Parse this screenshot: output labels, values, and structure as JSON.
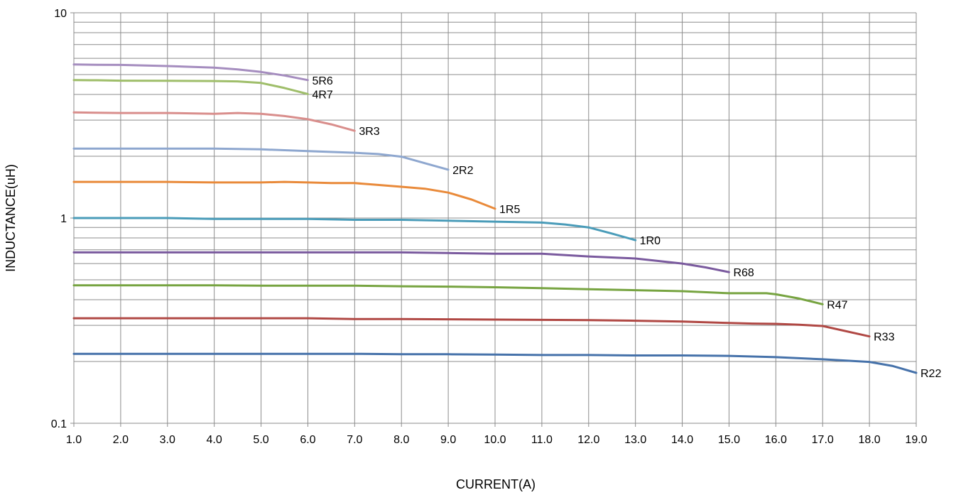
{
  "chart_data": {
    "type": "line",
    "title": "",
    "xlabel": "CURRENT(A)",
    "ylabel": "INDUCTANCE(uH)",
    "xlim": [
      1.0,
      19.0
    ],
    "ylim": [
      0.1,
      10
    ],
    "y_scale": "log",
    "grid": true,
    "legend": "none",
    "x_ticks": [
      "1.0",
      "2.0",
      "3.0",
      "4.0",
      "5.0",
      "6.0",
      "7.0",
      "8.0",
      "9.0",
      "10.0",
      "11.0",
      "12.0",
      "13.0",
      "14.0",
      "15.0",
      "16.0",
      "17.0",
      "18.0",
      "19.0"
    ],
    "x_tick_values": [
      1,
      2,
      3,
      4,
      5,
      6,
      7,
      8,
      9,
      10,
      11,
      12,
      13,
      14,
      15,
      16,
      17,
      18,
      19
    ],
    "y_ticks": [
      "0.1",
      "1",
      "10"
    ],
    "y_tick_values": [
      0.1,
      1,
      10
    ],
    "series": [
      {
        "name": "5R6",
        "color": "#A58DBF",
        "x": [
          1,
          1.5,
          2,
          3,
          4,
          4.5,
          5,
          5.5,
          6
        ],
        "y": [
          5.6,
          5.58,
          5.57,
          5.5,
          5.4,
          5.3,
          5.15,
          4.95,
          4.7
        ]
      },
      {
        "name": "4R7",
        "color": "#9FBE6A",
        "x": [
          1,
          1.5,
          2,
          3,
          4,
          4.5,
          5,
          5.5,
          6
        ],
        "y": [
          4.7,
          4.69,
          4.67,
          4.66,
          4.65,
          4.63,
          4.55,
          4.3,
          4.02
        ]
      },
      {
        "name": "3R3",
        "color": "#D98E8C",
        "x": [
          1,
          2,
          3,
          4,
          4.5,
          5,
          5.5,
          6,
          6.5,
          7
        ],
        "y": [
          3.27,
          3.25,
          3.25,
          3.22,
          3.25,
          3.22,
          3.14,
          3.03,
          2.86,
          2.66
        ]
      },
      {
        "name": "2R2",
        "color": "#8EA7CF",
        "x": [
          1,
          2,
          3,
          4,
          5,
          6,
          7,
          7.5,
          8,
          8.5,
          9
        ],
        "y": [
          2.18,
          2.18,
          2.18,
          2.18,
          2.16,
          2.12,
          2.08,
          2.05,
          1.99,
          1.85,
          1.72
        ]
      },
      {
        "name": "1R5",
        "color": "#E98A3A",
        "x": [
          1,
          2,
          3,
          4,
          5,
          5.5,
          6,
          6.5,
          7,
          7.5,
          8,
          8.5,
          9,
          9.5,
          10
        ],
        "y": [
          1.5,
          1.5,
          1.5,
          1.49,
          1.49,
          1.5,
          1.49,
          1.48,
          1.48,
          1.45,
          1.42,
          1.39,
          1.33,
          1.23,
          1.11
        ]
      },
      {
        "name": "1R0",
        "color": "#4A9CB9",
        "x": [
          1,
          2,
          3,
          4,
          5,
          6,
          7,
          8,
          9,
          10,
          11,
          11.5,
          12,
          12.5,
          13
        ],
        "y": [
          1.0,
          1.0,
          1.0,
          0.99,
          0.99,
          0.99,
          0.98,
          0.98,
          0.97,
          0.96,
          0.95,
          0.93,
          0.9,
          0.84,
          0.78
        ]
      },
      {
        "name": "R68",
        "color": "#7A5A9E",
        "x": [
          1,
          2,
          3,
          4,
          5,
          6,
          7,
          8,
          9,
          10,
          11,
          12,
          13,
          14,
          14.5,
          15
        ],
        "y": [
          0.68,
          0.68,
          0.68,
          0.68,
          0.68,
          0.68,
          0.68,
          0.68,
          0.675,
          0.67,
          0.67,
          0.65,
          0.635,
          0.6,
          0.575,
          0.545
        ]
      },
      {
        "name": "R47",
        "color": "#77A441",
        "x": [
          1,
          2,
          3,
          4,
          5,
          6,
          7,
          8,
          9,
          10,
          11,
          12,
          13,
          14,
          15,
          15.8,
          16,
          16.5,
          17
        ],
        "y": [
          0.47,
          0.47,
          0.47,
          0.47,
          0.468,
          0.468,
          0.468,
          0.465,
          0.463,
          0.46,
          0.455,
          0.45,
          0.445,
          0.44,
          0.43,
          0.43,
          0.425,
          0.405,
          0.38
        ]
      },
      {
        "name": "R33",
        "color": "#B04844",
        "x": [
          1,
          2,
          3,
          4,
          5,
          6,
          7,
          8,
          9,
          10,
          11,
          12,
          13,
          14,
          15,
          15.5,
          16,
          16.5,
          17,
          18
        ],
        "y": [
          0.325,
          0.325,
          0.325,
          0.325,
          0.325,
          0.325,
          0.322,
          0.322,
          0.321,
          0.32,
          0.319,
          0.318,
          0.316,
          0.313,
          0.308,
          0.306,
          0.305,
          0.302,
          0.298,
          0.265
        ]
      },
      {
        "name": "R22",
        "color": "#4672AA",
        "x": [
          1,
          2,
          3,
          4,
          5,
          6,
          7,
          8,
          9,
          10,
          11,
          12,
          13,
          14,
          15,
          16,
          17,
          17.5,
          18,
          18.5,
          19
        ],
        "y": [
          0.218,
          0.218,
          0.218,
          0.218,
          0.218,
          0.218,
          0.218,
          0.217,
          0.217,
          0.216,
          0.215,
          0.215,
          0.214,
          0.214,
          0.213,
          0.21,
          0.205,
          0.202,
          0.199,
          0.19,
          0.176
        ]
      }
    ]
  }
}
